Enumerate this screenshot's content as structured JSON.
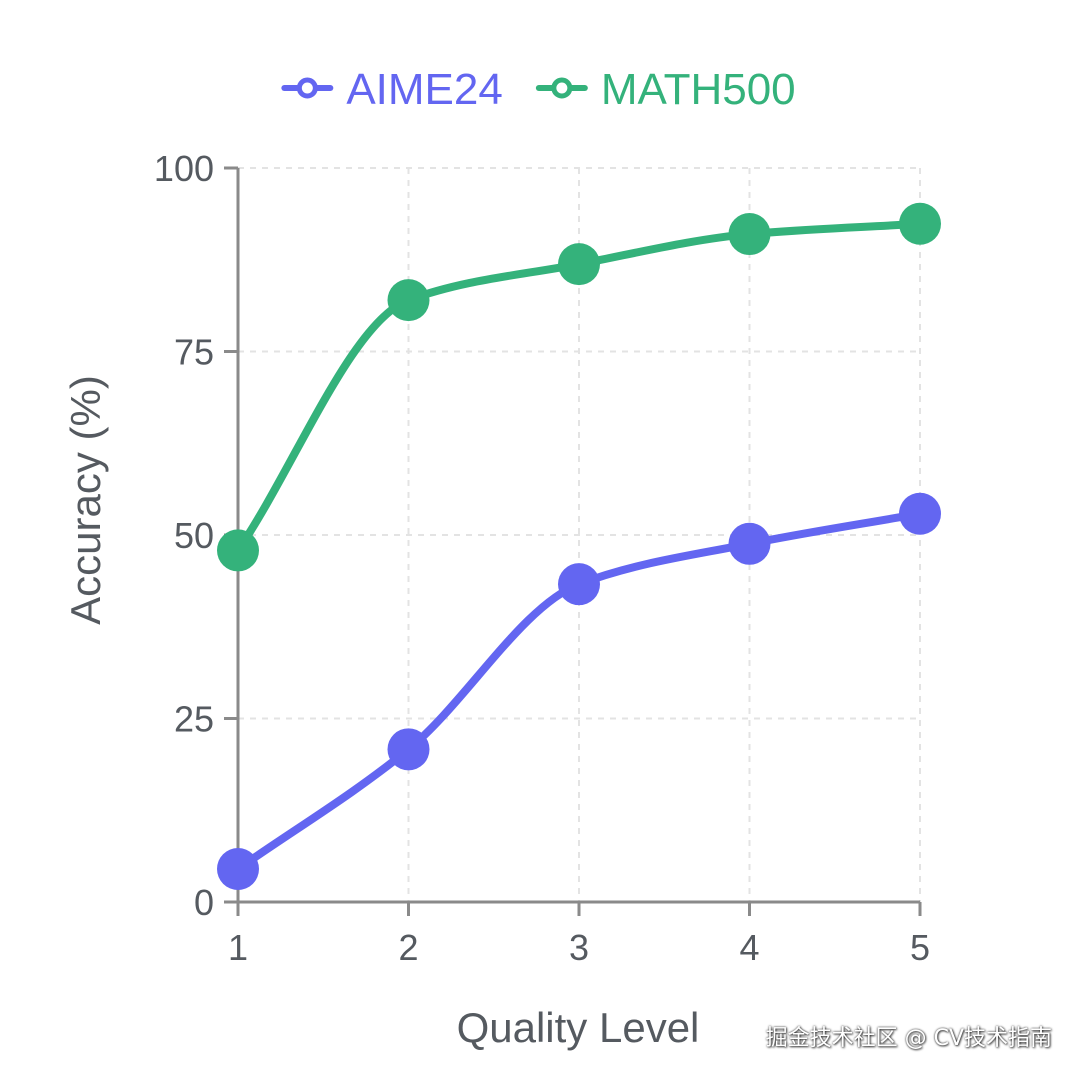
{
  "chart_data": {
    "type": "line",
    "x": [
      1,
      2,
      3,
      4,
      5
    ],
    "xticks": [
      "1",
      "2",
      "3",
      "4",
      "5"
    ],
    "yticks": [
      "0",
      "25",
      "50",
      "75",
      "100"
    ],
    "ytick_values": [
      0,
      25,
      50,
      75,
      100
    ],
    "xlim": [
      1,
      5
    ],
    "ylim": [
      0,
      100
    ],
    "xlabel": "Quality Level",
    "ylabel": "Accuracy (%)",
    "title": "",
    "grid": true,
    "legend_position": "top",
    "series": [
      {
        "name": "AIME24",
        "color": "#6366f1",
        "values": [
          4.5,
          20.8,
          43.3,
          48.8,
          52.9
        ]
      },
      {
        "name": "MATH500",
        "color": "#34b27b",
        "values": [
          47.9,
          82.0,
          86.9,
          91.0,
          92.4
        ]
      }
    ]
  },
  "watermark": "掘金技术社区 @ CV技术指南"
}
